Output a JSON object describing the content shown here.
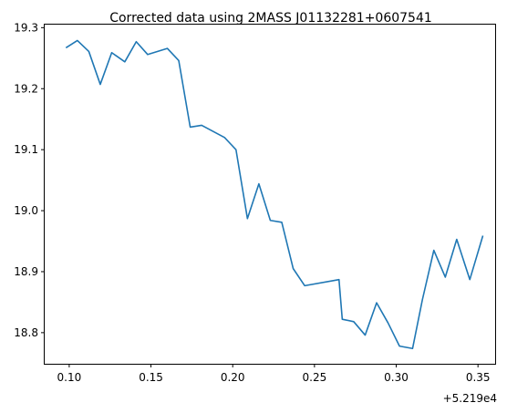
{
  "chart_data": {
    "type": "line",
    "title": "Corrected data using 2MASS J01132281+0607541",
    "xlabel": "",
    "ylabel": "",
    "x_offset_label": "+5.219e4",
    "x_offset": 52190,
    "xlim": [
      52190.085,
      52190.3605
    ],
    "ylim": [
      18.749,
      19.305
    ],
    "x_ticks": [
      {
        "value": 52190.1,
        "label": "0.10"
      },
      {
        "value": 52190.15,
        "label": "0.15"
      },
      {
        "value": 52190.2,
        "label": "0.20"
      },
      {
        "value": 52190.25,
        "label": "0.25"
      },
      {
        "value": 52190.3,
        "label": "0.30"
      },
      {
        "value": 52190.35,
        "label": "0.35"
      }
    ],
    "y_ticks": [
      {
        "value": 18.8,
        "label": "18.8"
      },
      {
        "value": 18.9,
        "label": "18.9"
      },
      {
        "value": 19.0,
        "label": "19.0"
      },
      {
        "value": 19.1,
        "label": "19.1"
      },
      {
        "value": 19.2,
        "label": "19.2"
      },
      {
        "value": 19.3,
        "label": "19.3"
      }
    ],
    "grid": false,
    "series": [
      {
        "color": "#1f77b4",
        "x": [
          52190.098,
          52190.105,
          52190.112,
          52190.119,
          52190.126,
          52190.134,
          52190.141,
          52190.148,
          52190.16,
          52190.167,
          52190.174,
          52190.181,
          52190.195,
          52190.202,
          52190.209,
          52190.216,
          52190.223,
          52190.23,
          52190.237,
          52190.244,
          52190.265,
          52190.267,
          52190.274,
          52190.281,
          52190.288,
          52190.295,
          52190.302,
          52190.31,
          52190.316,
          52190.323,
          52190.33,
          52190.337,
          52190.345,
          52190.353
        ],
        "y": [
          19.267,
          19.279,
          19.261,
          19.207,
          19.259,
          19.244,
          19.277,
          19.256,
          19.266,
          19.246,
          19.137,
          19.14,
          19.12,
          19.1,
          18.987,
          19.044,
          18.984,
          18.981,
          18.905,
          18.877,
          18.887,
          18.822,
          18.818,
          18.796,
          18.849,
          18.816,
          18.778,
          18.774,
          18.854,
          18.935,
          18.891,
          18.953,
          18.887,
          18.959
        ]
      }
    ]
  }
}
